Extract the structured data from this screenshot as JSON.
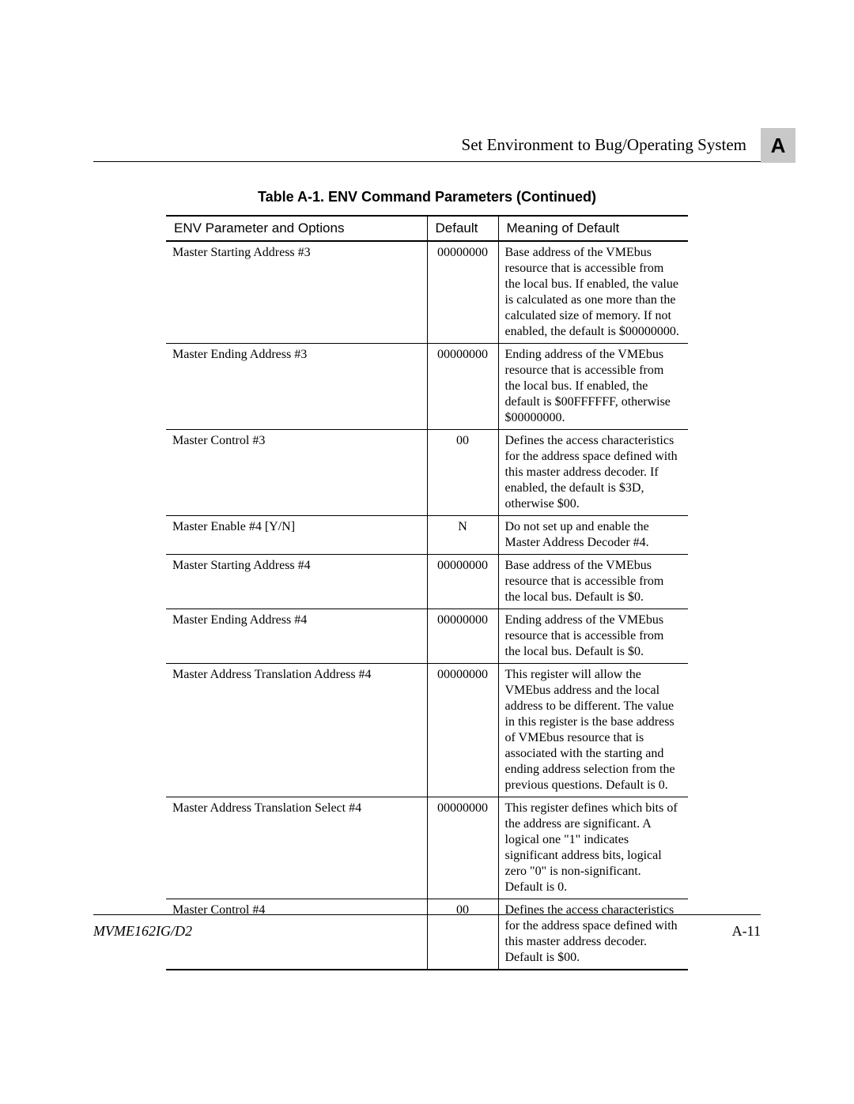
{
  "header": {
    "title": "Set Environment to Bug/Operating System",
    "tab": "A"
  },
  "table": {
    "caption": "Table A-1.  ENV Command Parameters (Continued)",
    "columns": {
      "param": "ENV Parameter and Options",
      "default": "Default",
      "meaning": "Meaning of Default"
    },
    "rows": [
      {
        "param": "Master Starting Address #3",
        "default": "00000000",
        "meaning": "Base address of the VMEbus resource that is accessible from the local bus. If enabled, the value is calculated as one more than the calculated size of memory. If not enabled, the default is $00000000."
      },
      {
        "param": "Master Ending Address #3",
        "default": "00000000",
        "meaning": "Ending address of the VMEbus resource that is accessible from the local bus. If enabled, the default is $00FFFFFF, otherwise $00000000."
      },
      {
        "param": "Master Control #3",
        "default": "00",
        "meaning": "Defines the access characteristics for the address space defined with this master address decoder. If enabled, the default is $3D, otherwise $00."
      },
      {
        "param": "Master Enable #4 [Y/N]",
        "default": "N",
        "meaning": "Do not set up and enable the Master Address Decoder #4."
      },
      {
        "param": "Master Starting Address #4",
        "default": "00000000",
        "meaning": "Base address of the VMEbus resource that is accessible from the local bus. Default is $0."
      },
      {
        "param": "Master Ending Address #4",
        "default": "00000000",
        "meaning": "Ending address of the VMEbus resource that is accessible from the local bus. Default is $0."
      },
      {
        "param": "Master Address Translation Address #4",
        "default": "00000000",
        "meaning": "This register will allow the VMEbus address and the local address to be different. The value in this register is the base address of VMEbus resource that is associated with the starting and ending address selection from the previous questions. Default is 0."
      },
      {
        "param": "Master Address Translation Select #4",
        "default": "00000000",
        "meaning": "This register defines which bits of the address are significant. A logical one \"1\" indicates significant address bits, logical zero \"0\" is non-significant. Default is 0."
      },
      {
        "param": "Master Control #4",
        "default": "00",
        "meaning": "Defines the access characteristics for the address space defined with this master address decoder. Default is $00."
      }
    ]
  },
  "footer": {
    "left": "MVME162IG/D2",
    "right": "A-11"
  }
}
